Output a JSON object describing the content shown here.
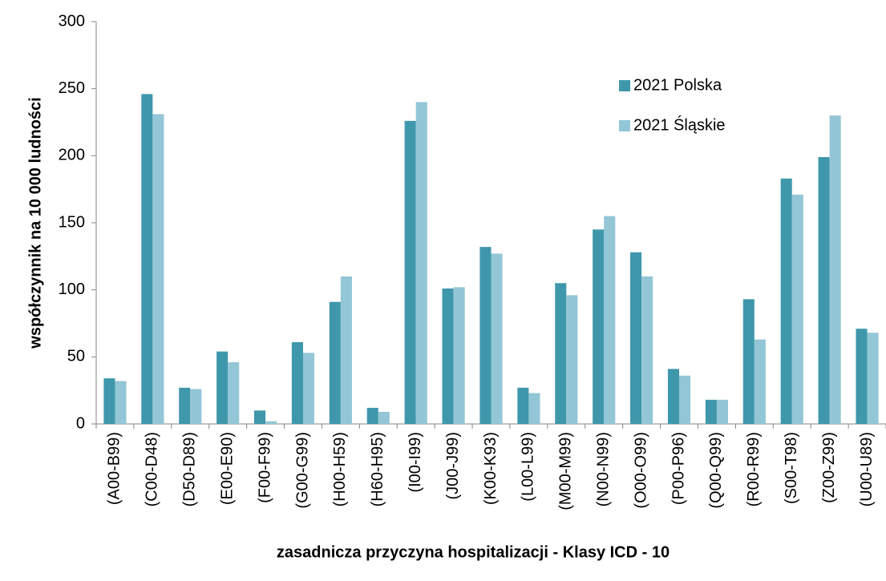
{
  "chart_data": {
    "type": "bar",
    "x_label": "zasadnicza przyczyna hospitalizacji -  Klasy ICD - 10",
    "y_label": "współczynnik na 10 000 ludności",
    "categories": [
      "(A00-B99)",
      "(C00-D48)",
      "(D50-D89)",
      "(E00-E90)",
      "(F00-F99)",
      "(G00-G99)",
      "(H00-H59)",
      "(H60-H95)",
      "(I00-I99)",
      "(J00-J99)",
      "(K00-K93)",
      "(L00-L99)",
      "(M00-M99)",
      "(N00-N99)",
      "(O00-O99)",
      "(P00-P96)",
      "(Q00-Q99)",
      "(R00-R99)",
      "(S00-T98)",
      "(Z00-Z99)",
      "(U00-U89)"
    ],
    "series": [
      {
        "name": "2021 Polska",
        "color": "#3f97ab",
        "values": [
          34,
          246,
          27,
          54,
          10,
          61,
          91,
          12,
          226,
          101,
          132,
          27,
          105,
          145,
          128,
          41,
          18,
          93,
          183,
          199,
          71
        ]
      },
      {
        "name": "2021 Śląskie",
        "color": "#93c6d6",
        "values": [
          32,
          231,
          26,
          46,
          2,
          53,
          110,
          9,
          240,
          102,
          127,
          23,
          96,
          155,
          110,
          36,
          18,
          63,
          171,
          230,
          68
        ]
      }
    ],
    "ylim": [
      0,
      300
    ],
    "yticks": [
      0,
      50,
      100,
      150,
      200,
      250,
      300
    ],
    "grid": false,
    "legend": "upper right"
  }
}
